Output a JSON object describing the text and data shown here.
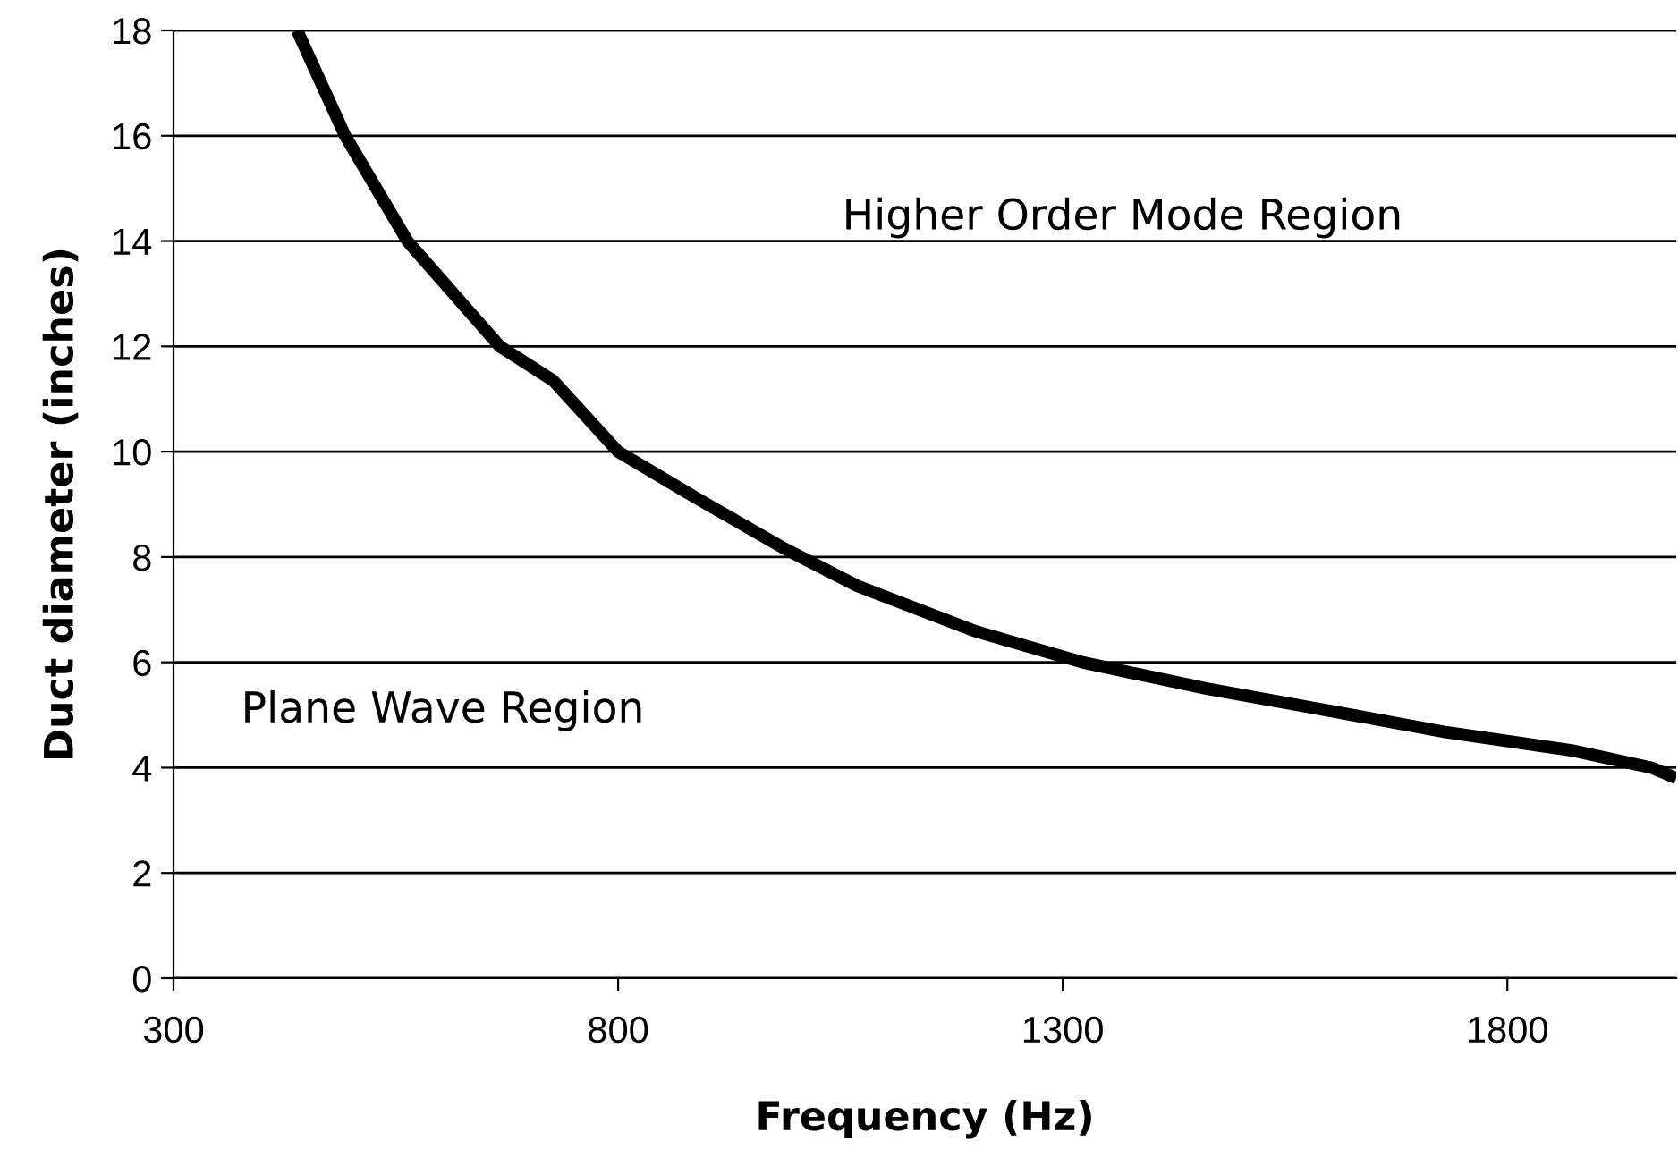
{
  "chart_data": {
    "type": "line",
    "xlabel": "Frequency (Hz)",
    "ylabel": "Duct diameter (inches)",
    "xlim": [
      300,
      1990
    ],
    "xticks": [
      300,
      800,
      1300,
      1800
    ],
    "ylim": [
      0,
      18
    ],
    "yticks": [
      0,
      2,
      4,
      6,
      8,
      10,
      12,
      14,
      16,
      18
    ],
    "grid": "y",
    "marker": "none",
    "line_style": "solid",
    "annotations": [
      "Higher Order Mode Region",
      "Plane Wave Region"
    ],
    "series": [
      {
        "color": "#000000",
        "x": [
          439,
          493,
          563,
          667,
          727,
          800,
          890,
          988,
          1069,
          1200,
          1322,
          1462,
          1577,
          1732,
          1872,
          1962,
          1990
        ],
        "values": [
          18,
          16,
          14,
          12,
          11.35,
          10,
          9.1,
          8.15,
          7.45,
          6.6,
          6.0,
          5.5,
          5.15,
          4.67,
          4.33,
          4.0,
          3.8
        ]
      }
    ]
  }
}
